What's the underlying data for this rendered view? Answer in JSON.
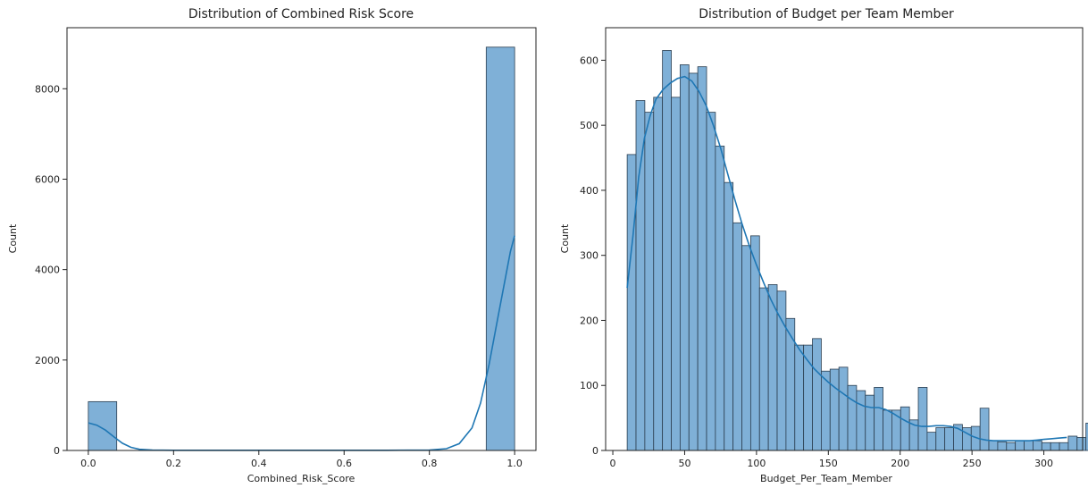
{
  "chart_data": [
    {
      "type": "histogram",
      "title": "Distribution of Combined Risk Score",
      "xlabel": "Combined_Risk_Score",
      "ylabel": "Count",
      "xlim": [
        -0.05,
        1.05
      ],
      "ylim": [
        0,
        9350
      ],
      "xticks": [
        0.0,
        0.2,
        0.4,
        0.6,
        0.8,
        1.0
      ],
      "xtick_labels": [
        "0.0",
        "0.2",
        "0.4",
        "0.6",
        "0.8",
        "1.0"
      ],
      "yticks": [
        0,
        2000,
        4000,
        6000,
        8000
      ],
      "ytick_labels": [
        "0",
        "2000",
        "4000",
        "6000",
        "8000"
      ],
      "bin_edges": [
        0.0,
        0.0667,
        0.1333,
        0.2,
        0.2667,
        0.3333,
        0.4,
        0.4667,
        0.5333,
        0.6,
        0.6667,
        0.7333,
        0.8,
        0.8667,
        0.9333,
        1.0
      ],
      "counts": [
        1080,
        0,
        0,
        0,
        0,
        0,
        0,
        0,
        0,
        0,
        0,
        0,
        0,
        0,
        8920
      ],
      "kde": [
        [
          0.0,
          610
        ],
        [
          0.02,
          560
        ],
        [
          0.04,
          450
        ],
        [
          0.06,
          300
        ],
        [
          0.08,
          160
        ],
        [
          0.1,
          70
        ],
        [
          0.12,
          25
        ],
        [
          0.15,
          8
        ],
        [
          0.2,
          3
        ],
        [
          0.3,
          3
        ],
        [
          0.5,
          3
        ],
        [
          0.7,
          3
        ],
        [
          0.8,
          10
        ],
        [
          0.84,
          40
        ],
        [
          0.87,
          150
        ],
        [
          0.9,
          500
        ],
        [
          0.92,
          1050
        ],
        [
          0.94,
          1900
        ],
        [
          0.96,
          2900
        ],
        [
          0.98,
          3900
        ],
        [
          0.99,
          4400
        ],
        [
          1.0,
          4750
        ]
      ],
      "color": "#1f77b4",
      "bar_fill": "#7fb0d7"
    },
    {
      "type": "histogram",
      "title": "Distribution of Budget per Team Member",
      "xlabel": "Budget_Per_Team_Member",
      "ylabel": "Count",
      "xlim": [
        -5,
        327
      ],
      "ylim": [
        0,
        650
      ],
      "xticks": [
        0,
        50,
        100,
        150,
        200,
        250,
        300
      ],
      "xtick_labels": [
        "0",
        "50",
        "100",
        "150",
        "200",
        "250",
        "300"
      ],
      "yticks": [
        0,
        100,
        200,
        300,
        400,
        500,
        600
      ],
      "ytick_labels": [
        "0",
        "100",
        "200",
        "300",
        "400",
        "500",
        "600"
      ],
      "bin_start": 10,
      "bin_width": 6.14,
      "counts": [
        455,
        538,
        520,
        543,
        615,
        543,
        593,
        580,
        590,
        520,
        468,
        412,
        350,
        315,
        330,
        250,
        255,
        245,
        203,
        162,
        162,
        172,
        122,
        125,
        128,
        100,
        92,
        85,
        97,
        62,
        62,
        67,
        47,
        97,
        28,
        35,
        35,
        40,
        35,
        37,
        65,
        15,
        13,
        12,
        15,
        15,
        15,
        12,
        12,
        12,
        22,
        20,
        42
      ],
      "kde": [
        [
          10,
          250
        ],
        [
          14,
          330
        ],
        [
          18,
          420
        ],
        [
          22,
          480
        ],
        [
          26,
          515
        ],
        [
          30,
          540
        ],
        [
          35,
          555
        ],
        [
          40,
          565
        ],
        [
          45,
          572
        ],
        [
          50,
          575
        ],
        [
          55,
          568
        ],
        [
          60,
          552
        ],
        [
          65,
          530
        ],
        [
          70,
          500
        ],
        [
          75,
          465
        ],
        [
          80,
          425
        ],
        [
          85,
          385
        ],
        [
          90,
          348
        ],
        [
          95,
          315
        ],
        [
          100,
          285
        ],
        [
          105,
          258
        ],
        [
          110,
          232
        ],
        [
          115,
          210
        ],
        [
          120,
          190
        ],
        [
          125,
          172
        ],
        [
          130,
          155
        ],
        [
          135,
          140
        ],
        [
          140,
          126
        ],
        [
          145,
          115
        ],
        [
          150,
          105
        ],
        [
          155,
          96
        ],
        [
          160,
          88
        ],
        [
          165,
          80
        ],
        [
          170,
          73
        ],
        [
          175,
          68
        ],
        [
          180,
          66
        ],
        [
          185,
          66
        ],
        [
          190,
          63
        ],
        [
          195,
          57
        ],
        [
          200,
          50
        ],
        [
          205,
          44
        ],
        [
          210,
          39
        ],
        [
          215,
          37
        ],
        [
          220,
          37
        ],
        [
          225,
          38
        ],
        [
          230,
          38
        ],
        [
          235,
          37
        ],
        [
          240,
          34
        ],
        [
          245,
          28
        ],
        [
          250,
          22
        ],
        [
          255,
          18
        ],
        [
          260,
          16
        ],
        [
          265,
          15
        ],
        [
          270,
          15
        ],
        [
          275,
          15
        ],
        [
          280,
          15
        ],
        [
          285,
          15
        ],
        [
          290,
          15
        ],
        [
          295,
          16
        ],
        [
          300,
          17
        ],
        [
          305,
          18
        ],
        [
          310,
          19
        ],
        [
          316,
          20
        ]
      ],
      "color": "#1f77b4",
      "bar_fill": "#7fb0d7"
    }
  ]
}
